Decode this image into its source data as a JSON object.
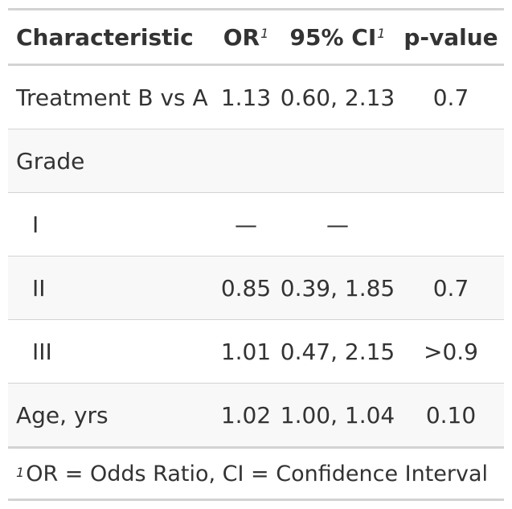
{
  "header": {
    "characteristic": "Characteristic",
    "or": "OR",
    "or_mark": "1",
    "ci": "95% CI",
    "ci_mark": "1",
    "pvalue": "p-value"
  },
  "rows": [
    {
      "label": "Treatment B vs A",
      "or": "1.13",
      "ci": "0.60, 2.13",
      "p": "0.7"
    },
    {
      "label": "Grade",
      "or": "",
      "ci": "",
      "p": ""
    },
    {
      "label": "I",
      "or": "—",
      "ci": "—",
      "p": ""
    },
    {
      "label": "II",
      "or": "0.85",
      "ci": "0.39, 1.85",
      "p": "0.7"
    },
    {
      "label": "III",
      "or": "1.01",
      "ci": "0.47, 2.15",
      "p": ">0.9"
    },
    {
      "label": "Age, yrs",
      "or": "1.02",
      "ci": "1.00, 1.04",
      "p": "0.10"
    }
  ],
  "footnote": {
    "mark": "1",
    "text": "OR = Odds Ratio, CI = Confidence Interval"
  }
}
